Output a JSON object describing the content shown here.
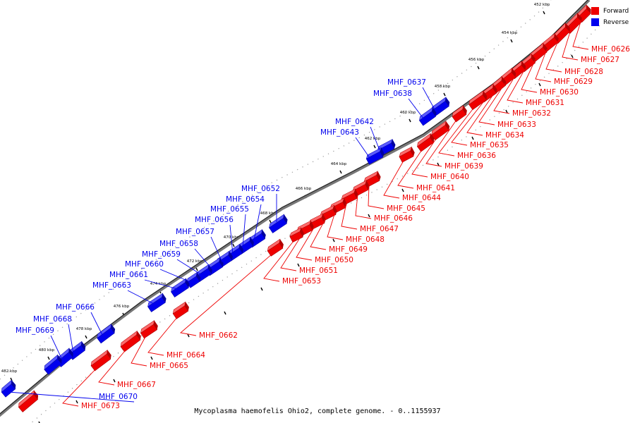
{
  "colors": {
    "forward": "#ee0000",
    "reverse": "#0000ee",
    "backbone": "#777777"
  },
  "legend": [
    {
      "label": "Forward",
      "color": "#ee0000"
    },
    {
      "label": "Reverse",
      "color": "#0000ee"
    }
  ],
  "caption": "Mycoplasma haemofelis Ohio2, complete genome. - 0..1155937",
  "ticks": [
    "452 kbp",
    "454 kbp",
    "456 kbp",
    "458 kbp",
    "460 kbp",
    "462 kbp",
    "464 kbp",
    "466 kbp",
    "468 kbp",
    "470 kbp",
    "472 kbp",
    "474 kbp",
    "476 kbp",
    "478 kbp",
    "480 kbp",
    "482 kbp"
  ],
  "forward_genes": [
    "MHF_0626",
    "MHF_0627",
    "MHF_0628",
    "MHF_0629",
    "MHF_0630",
    "MHF_0631",
    "MHF_0632",
    "MHF_0633",
    "MHF_0634",
    "MHF_0635",
    "MHF_0636",
    "MHF_0639",
    "MHF_0640",
    "MHF_0641",
    "MHF_0644",
    "MHF_0645",
    "MHF_0646",
    "MHF_0647",
    "MHF_0648",
    "MHF_0649",
    "MHF_0650",
    "MHF_0651",
    "MHF_0653",
    "MHF_0662",
    "MHF_0664",
    "MHF_0665",
    "MHF_0667",
    "MHF_0673"
  ],
  "reverse_genes": [
    "MHF_0637",
    "MHF_0638",
    "MHF_0642",
    "MHF_0643",
    "MHF_0652",
    "MHF_0654",
    "MHF_0655",
    "MHF_0656",
    "MHF_0657",
    "MHF_0658",
    "MHF_0659",
    "MHF_0660",
    "MHF_0661",
    "MHF_0663",
    "MHF_0666",
    "MHF_0668",
    "MHF_0669",
    "MHF_0670"
  ]
}
